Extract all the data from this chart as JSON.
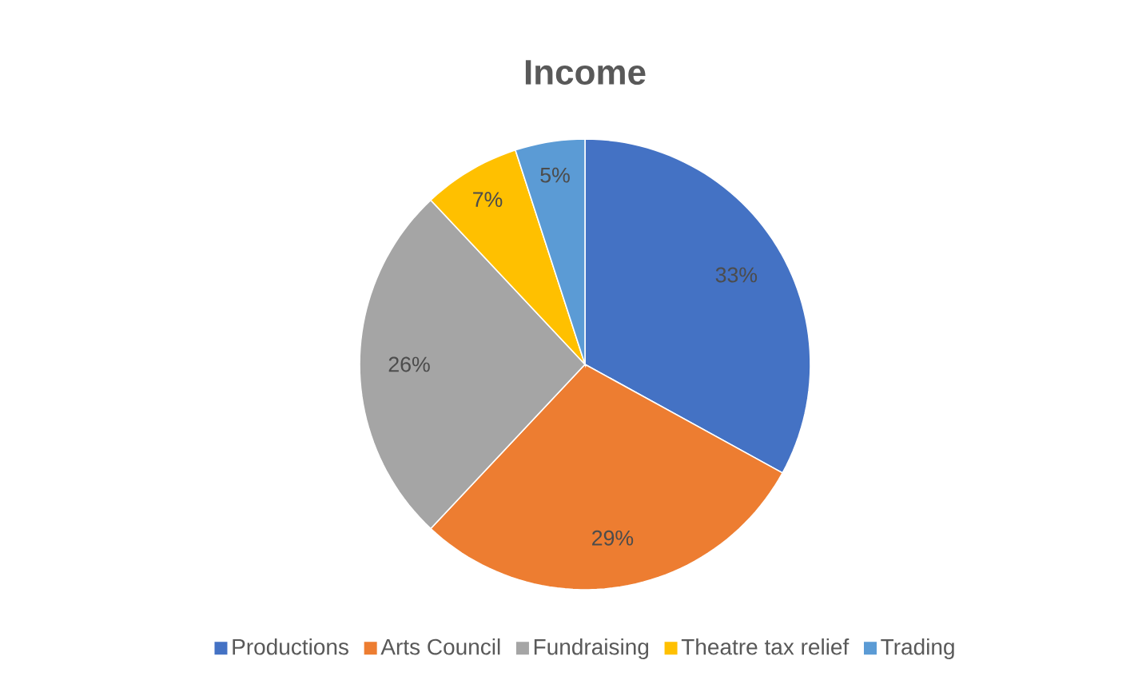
{
  "chart_data": {
    "type": "pie",
    "title": "Income",
    "categories": [
      "Productions",
      "Arts Council",
      "Fundraising",
      "Theatre tax relief",
      "Trading"
    ],
    "values": [
      33,
      29,
      26,
      7,
      5
    ],
    "value_labels": [
      "33%",
      "29%",
      "26%",
      "7%",
      "5%"
    ],
    "colors": [
      "#4472c4",
      "#ed7d31",
      "#a5a5a5",
      "#ffc000",
      "#5b9bd5"
    ],
    "legend": "bottom"
  }
}
